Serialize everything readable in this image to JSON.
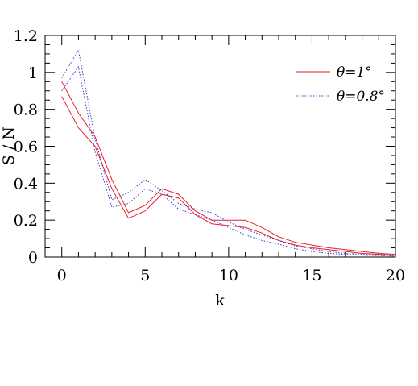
{
  "chart_data": {
    "type": "line",
    "xlabel": "k",
    "ylabel": "S / N",
    "xlim": [
      -1,
      20
    ],
    "ylim": [
      0,
      1.2
    ],
    "xticks": [
      "0",
      "5",
      "10",
      "15",
      "20"
    ],
    "yticks": [
      "0",
      "0.2",
      "0.4",
      "0.6",
      "0.8",
      "1",
      "1.2"
    ],
    "grid": false,
    "legend_position": "top-right",
    "x": [
      0,
      1,
      2,
      3,
      4,
      5,
      6,
      7,
      8,
      9,
      10,
      11,
      12,
      13,
      14,
      15,
      16,
      17,
      18,
      19,
      20
    ],
    "series": [
      {
        "name": "θ=1°",
        "legend": true,
        "color": "#e8202a",
        "style": "solid",
        "values": [
          0.95,
          0.78,
          0.65,
          0.42,
          0.24,
          0.28,
          0.37,
          0.34,
          0.25,
          0.2,
          0.2,
          0.2,
          0.16,
          0.11,
          0.08,
          0.065,
          0.05,
          0.04,
          0.03,
          0.02,
          0.015
        ]
      },
      {
        "name": "θ=1°",
        "legend": false,
        "color": "#e8202a",
        "style": "solid",
        "values": [
          0.87,
          0.7,
          0.6,
          0.37,
          0.21,
          0.25,
          0.34,
          0.32,
          0.23,
          0.18,
          0.17,
          0.16,
          0.13,
          0.09,
          0.065,
          0.05,
          0.04,
          0.03,
          0.02,
          0.015,
          0.01
        ]
      },
      {
        "name": "θ=0.8°",
        "legend": true,
        "color": "#3a3acf",
        "style": "dotted",
        "values": [
          0.97,
          1.12,
          0.64,
          0.31,
          0.35,
          0.42,
          0.36,
          0.29,
          0.26,
          0.24,
          0.19,
          0.15,
          0.12,
          0.09,
          0.06,
          0.045,
          0.03,
          0.02,
          0.015,
          0.01,
          0.008
        ]
      },
      {
        "name": "θ=0.8°",
        "legend": false,
        "color": "#3a3acf",
        "style": "dotted",
        "values": [
          0.9,
          1.03,
          0.57,
          0.27,
          0.29,
          0.37,
          0.34,
          0.26,
          0.23,
          0.2,
          0.16,
          0.12,
          0.09,
          0.07,
          0.045,
          0.03,
          0.02,
          0.015,
          0.01,
          0.008,
          0.005
        ]
      }
    ]
  }
}
